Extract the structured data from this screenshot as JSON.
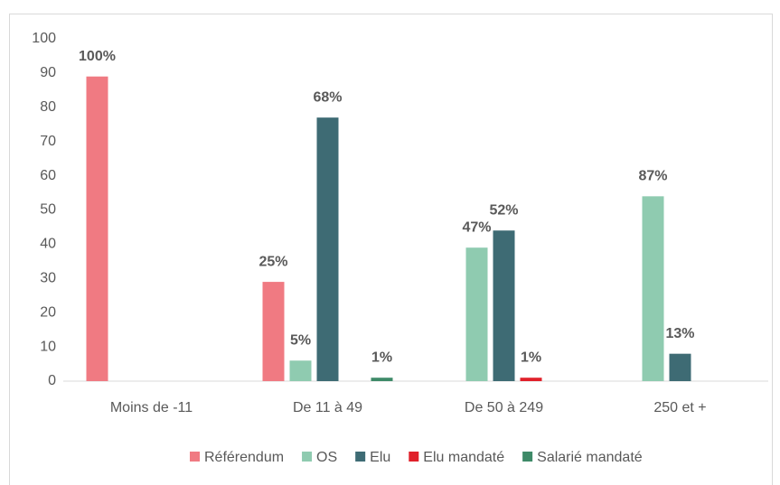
{
  "chart_data": {
    "type": "bar",
    "categories": [
      "Moins de -11",
      "De 11 à 49",
      "De 50 à 249",
      "250 et +"
    ],
    "series": [
      {
        "name": "Référendum",
        "color": "#f07a82",
        "values": [
          89,
          29,
          null,
          null
        ],
        "labels": [
          "100%",
          "25%",
          null,
          null
        ]
      },
      {
        "name": "OS",
        "color": "#8fcbb0",
        "values": [
          null,
          6,
          39,
          54
        ],
        "labels": [
          null,
          "5%",
          "47%",
          "87%"
        ]
      },
      {
        "name": "Elu",
        "color": "#3e6b74",
        "values": [
          null,
          77,
          44,
          8
        ],
        "labels": [
          null,
          "68%",
          "52%",
          "13%"
        ]
      },
      {
        "name": "Elu mandaté",
        "color": "#e0202a",
        "values": [
          null,
          null,
          1,
          null
        ],
        "labels": [
          null,
          null,
          "1%",
          null
        ]
      },
      {
        "name": "Salarié mandaté",
        "color": "#3e8a68",
        "values": [
          null,
          1,
          null,
          null
        ],
        "labels": [
          null,
          "1%",
          null,
          null
        ]
      }
    ],
    "ylim": [
      0,
      100
    ],
    "yticks": [
      0,
      10,
      20,
      30,
      40,
      50,
      60,
      70,
      80,
      90,
      100
    ],
    "grid": false,
    "legend": "bottom"
  }
}
